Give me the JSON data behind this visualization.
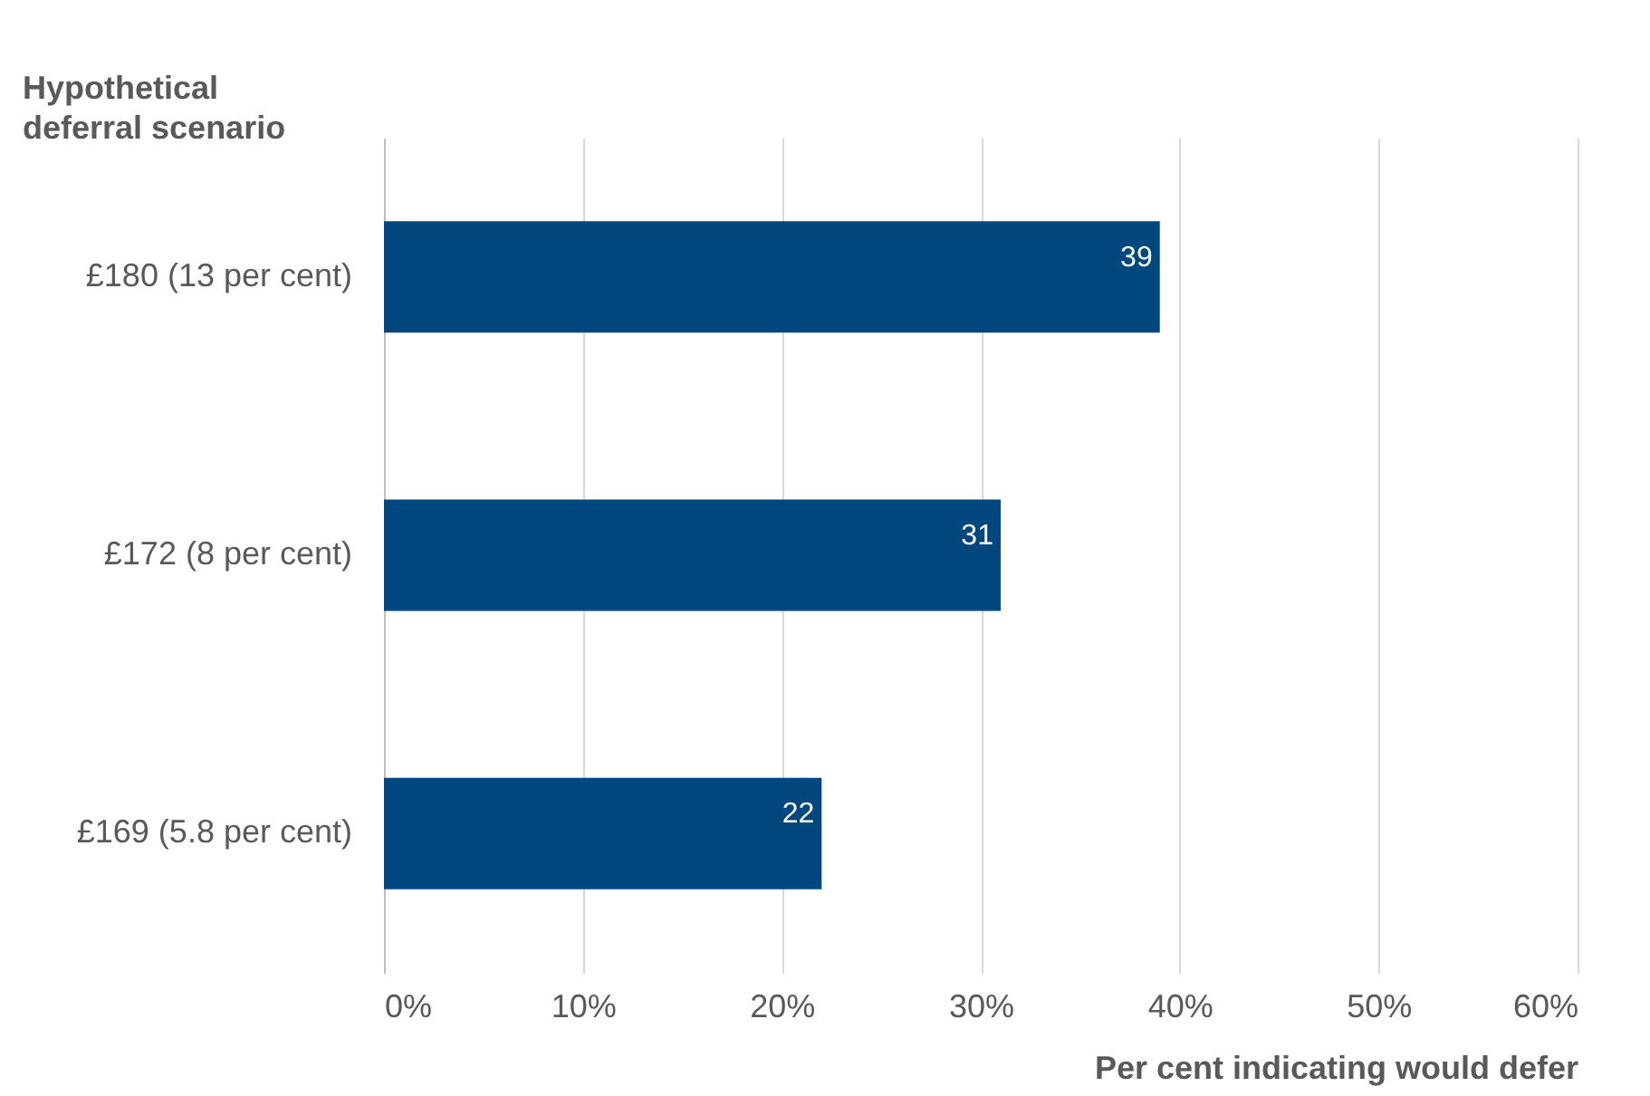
{
  "chart_data": {
    "type": "bar",
    "orientation": "horizontal",
    "ylabel": "Hypothetical deferral scenario",
    "xlabel": "Per cent indicating would defer",
    "categories": [
      "£180 (13 per cent)",
      "£172 (8 per cent)",
      "£169 (5.8 per cent)"
    ],
    "values": [
      39,
      31,
      22
    ],
    "color": "#00467f",
    "data_labels": true,
    "grid": "x",
    "xlim": [
      0,
      60
    ],
    "xticks": [
      {
        "value": 0,
        "label": "0%"
      },
      {
        "value": 10,
        "label": "10%"
      },
      {
        "value": 20,
        "label": "20%"
      },
      {
        "value": 30,
        "label": "30%"
      },
      {
        "value": 40,
        "label": "40%"
      },
      {
        "value": 50,
        "label": "50%"
      },
      {
        "value": 60,
        "label": "60%"
      }
    ]
  }
}
